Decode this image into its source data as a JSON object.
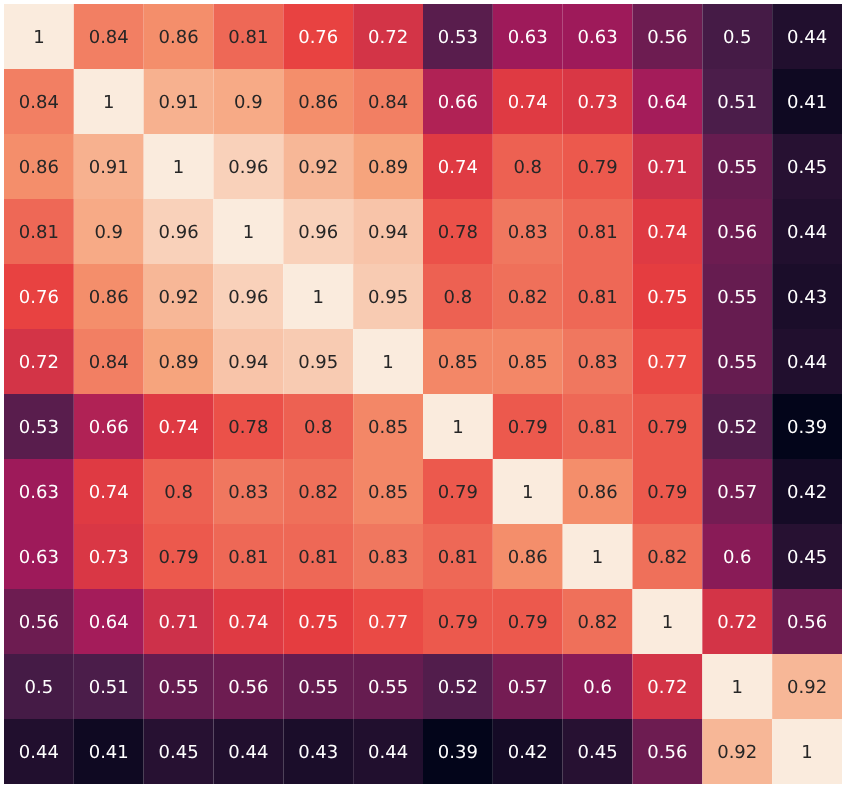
{
  "chart_data": {
    "type": "heatmap",
    "data_labels": true,
    "categories": [
      null,
      null,
      null,
      null,
      null,
      null,
      null,
      null,
      null,
      null,
      null,
      null
    ],
    "y_categories": [
      null,
      null,
      null,
      null,
      null,
      null,
      null,
      null,
      null,
      null,
      null,
      null
    ],
    "cells": [
      [
        1,
        0.84,
        0.86,
        0.81,
        0.76,
        0.72,
        0.53,
        0.63,
        0.63,
        0.56,
        0.5,
        0.44
      ],
      [
        0.84,
        1,
        0.91,
        0.9,
        0.86,
        0.84,
        0.66,
        0.74,
        0.73,
        0.64,
        0.51,
        0.41
      ],
      [
        0.86,
        0.91,
        1,
        0.96,
        0.92,
        0.89,
        0.74,
        0.8,
        0.79,
        0.71,
        0.55,
        0.45
      ],
      [
        0.81,
        0.9,
        0.96,
        1,
        0.96,
        0.94,
        0.78,
        0.83,
        0.81,
        0.74,
        0.56,
        0.44
      ],
      [
        0.76,
        0.86,
        0.92,
        0.96,
        1,
        0.95,
        0.8,
        0.82,
        0.81,
        0.75,
        0.55,
        0.43
      ],
      [
        0.72,
        0.84,
        0.89,
        0.94,
        0.95,
        1,
        0.85,
        0.85,
        0.83,
        0.77,
        0.55,
        0.44
      ],
      [
        0.53,
        0.66,
        0.74,
        0.78,
        0.8,
        0.85,
        1,
        0.79,
        0.81,
        0.79,
        0.52,
        0.39
      ],
      [
        0.63,
        0.74,
        0.8,
        0.83,
        0.82,
        0.85,
        0.79,
        1,
        0.86,
        0.79,
        0.57,
        0.42
      ],
      [
        0.63,
        0.73,
        0.79,
        0.81,
        0.81,
        0.83,
        0.81,
        0.86,
        1,
        0.82,
        0.6,
        0.45
      ],
      [
        0.56,
        0.64,
        0.71,
        0.74,
        0.75,
        0.77,
        0.79,
        0.79,
        0.82,
        1,
        0.72,
        0.56
      ],
      [
        0.5,
        0.51,
        0.55,
        0.56,
        0.55,
        0.55,
        0.52,
        0.57,
        0.6,
        0.72,
        1,
        0.92
      ],
      [
        0.44,
        0.41,
        0.45,
        0.44,
        0.43,
        0.44,
        0.39,
        0.42,
        0.45,
        0.56,
        0.92,
        1
      ]
    ]
  }
}
